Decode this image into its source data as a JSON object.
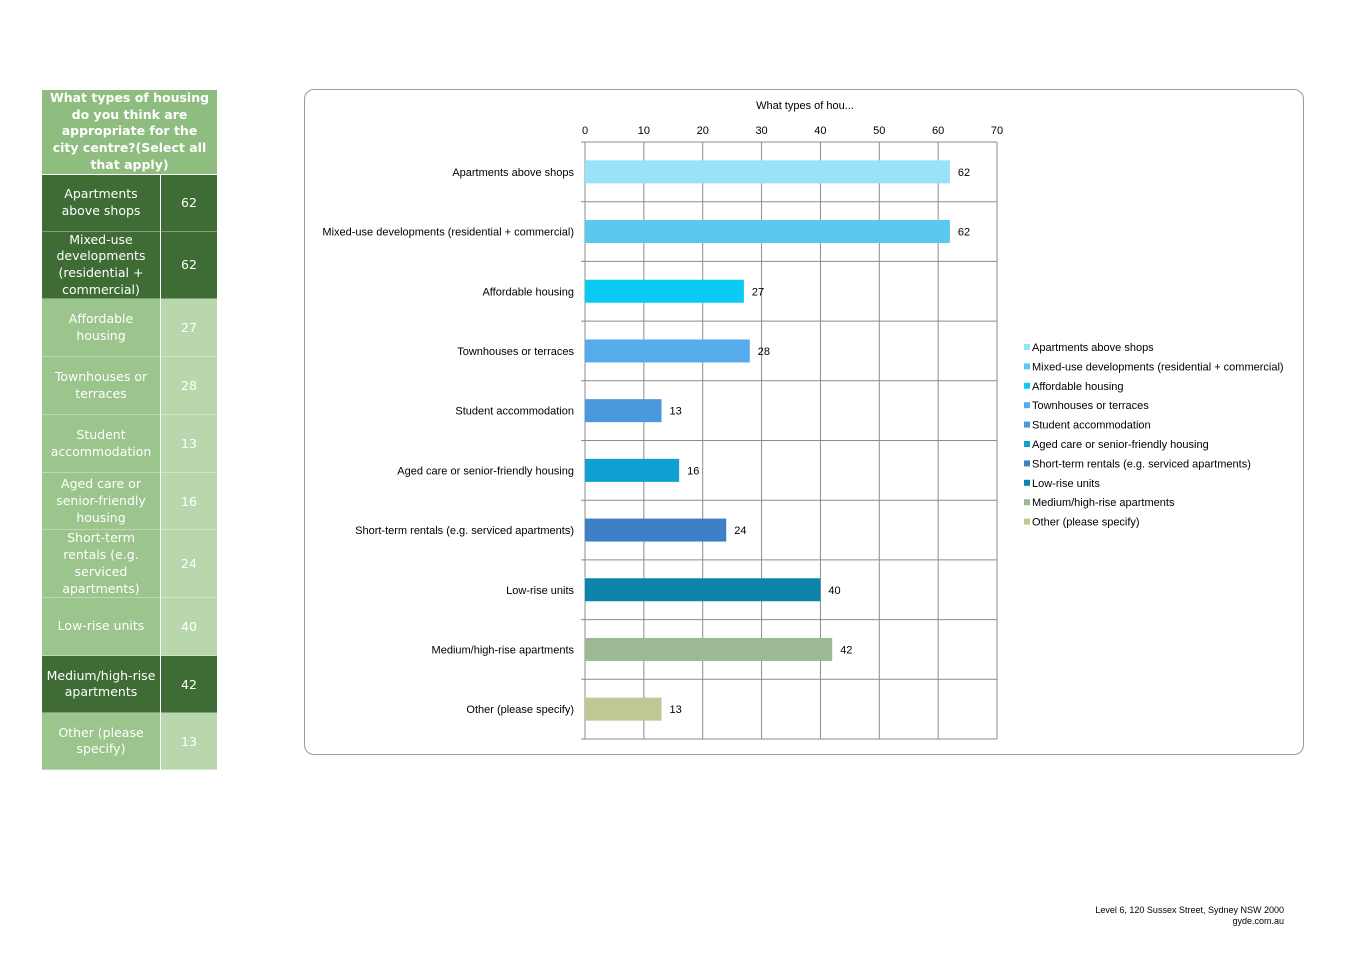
{
  "table": {
    "header": "What types of housing do you think are appropriate for the city centre?(Select all that apply)",
    "rows": [
      {
        "label": "Apartments above shops",
        "value": "62",
        "style": "dark",
        "height": 57
      },
      {
        "label": "Mixed-use developments (residential + commercial)",
        "value": "62",
        "style": "dark",
        "height": 67
      },
      {
        "label": "Affordable housing",
        "value": "27",
        "style": "light",
        "height": 58
      },
      {
        "label": "Townhouses or terraces",
        "value": "28",
        "style": "light",
        "height": 58
      },
      {
        "label": "Student accommodation",
        "value": "13",
        "style": "light",
        "height": 58
      },
      {
        "label": "Aged care or senior-friendly housing",
        "value": "16",
        "style": "light",
        "height": 57
      },
      {
        "label": "Short-term rentals (e.g. serviced apartments)",
        "value": "24",
        "style": "light",
        "height": 68
      },
      {
        "label": "Low-rise units",
        "value": "40",
        "style": "light",
        "height": 58
      },
      {
        "label": "Medium/high-rise apartments",
        "value": "42",
        "style": "dark",
        "height": 57
      },
      {
        "label": "Other (please specify)",
        "value": "13",
        "style": "light",
        "height": 57
      }
    ]
  },
  "chart_data": {
    "type": "bar",
    "orientation": "horizontal",
    "title": "What types of hou...",
    "categories": [
      "Apartments above shops",
      "Mixed-use developments (residential + commercial)",
      "Affordable housing",
      "Townhouses or terraces",
      "Student accommodation",
      "Aged care or senior-friendly housing",
      "Short-term rentals (e.g. serviced apartments)",
      "Low-rise units",
      "Medium/high-rise apartments",
      "Other (please specify)"
    ],
    "values": [
      62,
      62,
      27,
      28,
      13,
      16,
      24,
      40,
      42,
      13
    ],
    "colors": [
      "#99e3fa",
      "#5ac7ef",
      "#0bcbf5",
      "#56acea",
      "#4a99df",
      "#0f9fd0",
      "#3e80c8",
      "#0c84ab",
      "#9bba94",
      "#c0c794"
    ],
    "xlim": [
      0,
      70
    ],
    "xticks": [
      0,
      10,
      20,
      30,
      40,
      50,
      60,
      70
    ],
    "axis_position": "top",
    "grid": true,
    "legend_position": "right",
    "legend": [
      "Apartments above shops",
      "Mixed-use developments (residential + commercial)",
      "Affordable housing",
      "Townhouses or terraces",
      "Student accommodation",
      "Aged care or senior-friendly housing",
      "Short-term rentals (e.g. serviced apartments)",
      "Low-rise units",
      "Medium/high-rise apartments",
      "Other (please specify)"
    ]
  },
  "footer": {
    "address": "Level 6, 120 Sussex Street, Sydney NSW 2000",
    "website": "gyde.com.au"
  }
}
